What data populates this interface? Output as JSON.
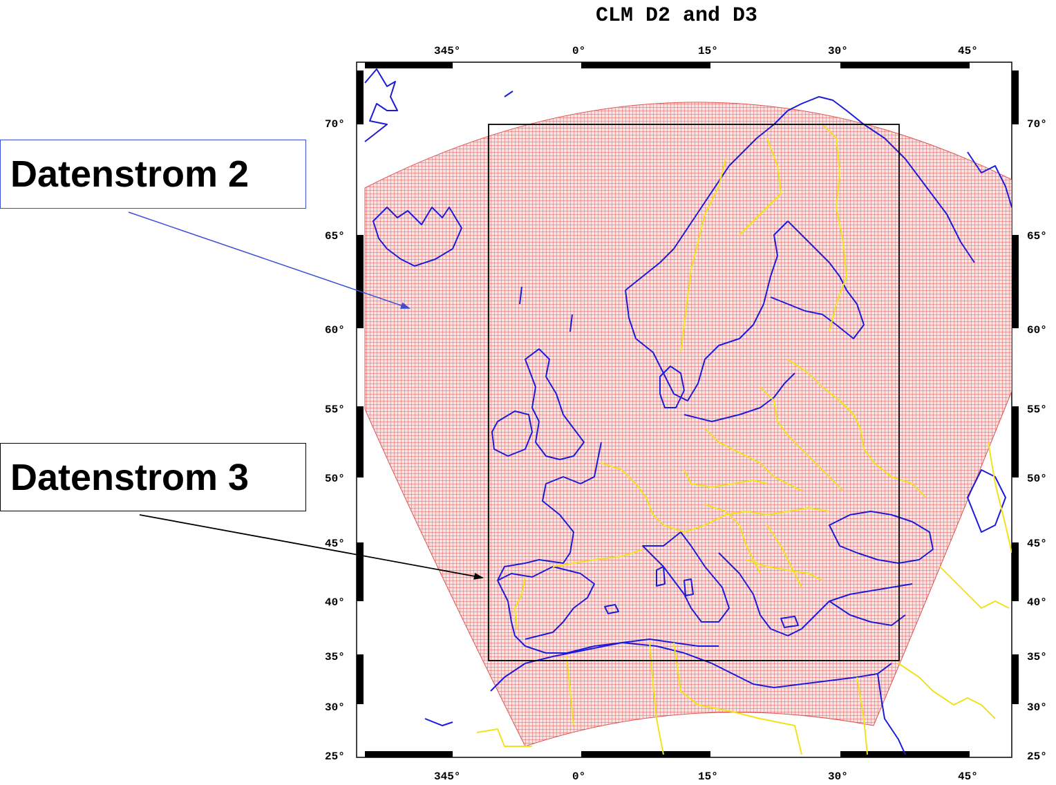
{
  "title": "CLM D2 and D3",
  "labels": {
    "d2": "Datenstrom 2",
    "d3": "Datenstrom 3"
  },
  "axes": {
    "lon_ticks": [
      "345°",
      "0°",
      "15°",
      "30°",
      "45°"
    ],
    "lat_ticks": [
      "70°",
      "65°",
      "60°",
      "55°",
      "50°",
      "45°",
      "40°",
      "35°",
      "30°",
      "25°"
    ]
  },
  "colors": {
    "grid": "#e05555",
    "domain_fill": "#f7c4c4",
    "coast": "#1a1ad8",
    "borders": "#f2e21a",
    "d2_arrow": "#3a4fd8",
    "d3_box": "#000000"
  }
}
